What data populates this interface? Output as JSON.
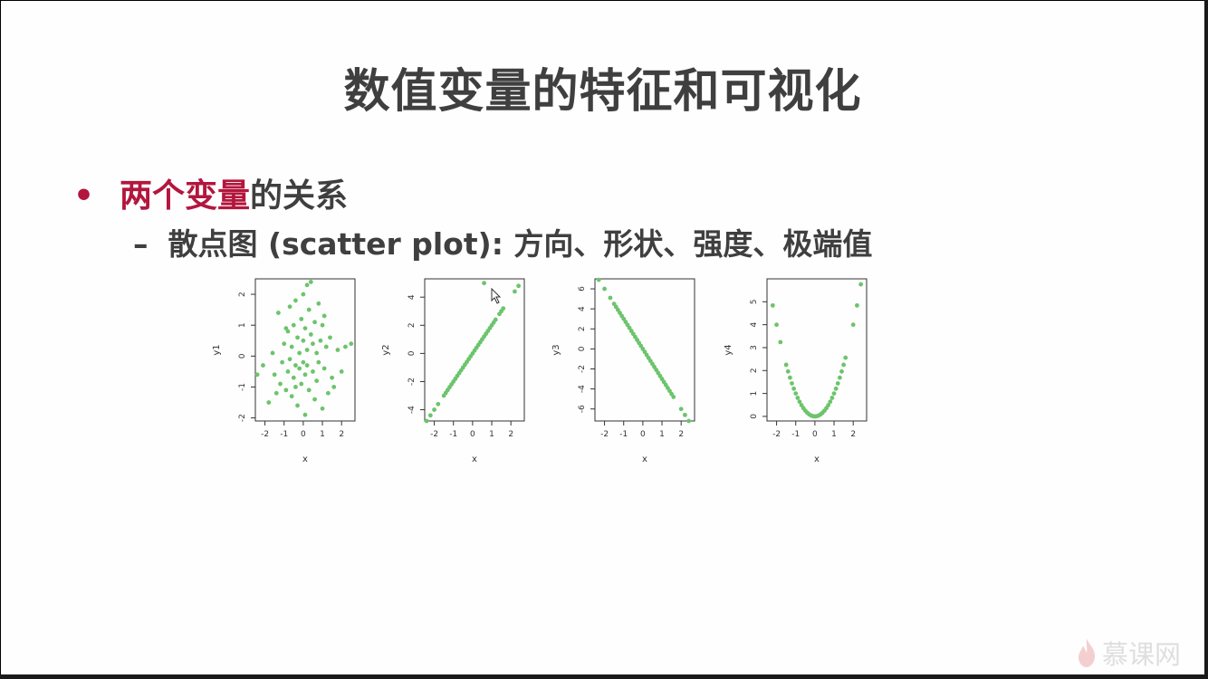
{
  "slide": {
    "title": "数值变量的特征和可视化",
    "bullet": {
      "highlight": "两个变量",
      "rest": "的关系"
    },
    "sub_bullet": {
      "dash": "–",
      "text": "散点图 (scatter plot): 方向、形状、强度、极端值"
    }
  },
  "watermark": {
    "text": "慕课网",
    "icon": "flame-icon"
  },
  "colors": {
    "title": "#3f3f3f",
    "accent": "#b3163d",
    "points": "#6cc46c"
  },
  "chart_data": [
    {
      "type": "scatter",
      "xlabel": "x",
      "ylabel": "y1",
      "xlim": [
        -2.5,
        2.7
      ],
      "ylim": [
        -2.1,
        2.5
      ],
      "xticks": [
        "-2",
        "-1",
        "0",
        "1",
        "2"
      ],
      "xtick_values": [
        -2,
        -1,
        0,
        1,
        2
      ],
      "yticks": [
        "-2",
        "-1",
        "0",
        "1",
        "2"
      ],
      "ytick_values": [
        -2,
        -1,
        0,
        1,
        2
      ],
      "points": [
        [
          -2.4,
          -0.6
        ],
        [
          -2.1,
          -0.3
        ],
        [
          -1.8,
          -1.5
        ],
        [
          -1.6,
          0.1
        ],
        [
          -1.5,
          -0.6
        ],
        [
          -1.3,
          1.4
        ],
        [
          -1.2,
          -0.9
        ],
        [
          -1.1,
          -0.2
        ],
        [
          -1.0,
          0.4
        ],
        [
          -0.9,
          -1.1
        ],
        [
          -0.9,
          0.9
        ],
        [
          -0.8,
          -0.5
        ],
        [
          -0.7,
          1.6
        ],
        [
          -0.7,
          -0.1
        ],
        [
          -0.6,
          -1.3
        ],
        [
          -0.6,
          0.3
        ],
        [
          -0.5,
          1.0
        ],
        [
          -0.5,
          -0.7
        ],
        [
          -0.4,
          -0.3
        ],
        [
          -0.4,
          1.8
        ],
        [
          -0.3,
          0.6
        ],
        [
          -0.3,
          -1.6
        ],
        [
          -0.2,
          -0.4
        ],
        [
          -0.2,
          0.1
        ],
        [
          -0.1,
          1.2
        ],
        [
          -0.1,
          -0.9
        ],
        [
          0.0,
          -0.2
        ],
        [
          0.0,
          2.0
        ],
        [
          0.0,
          0.5
        ],
        [
          0.1,
          -1.9
        ],
        [
          0.1,
          -0.6
        ],
        [
          0.2,
          2.3
        ],
        [
          0.2,
          0.2
        ],
        [
          0.2,
          -0.3
        ],
        [
          0.3,
          1.5
        ],
        [
          0.3,
          -1.1
        ],
        [
          0.4,
          0.7
        ],
        [
          0.4,
          2.4
        ],
        [
          0.5,
          -0.5
        ],
        [
          0.5,
          0.4
        ],
        [
          0.6,
          1.1
        ],
        [
          0.6,
          -1.4
        ],
        [
          0.7,
          0.1
        ],
        [
          0.7,
          -0.8
        ],
        [
          0.8,
          1.7
        ],
        [
          0.8,
          -0.2
        ],
        [
          0.9,
          0.5
        ],
        [
          1.0,
          -1.7
        ],
        [
          1.0,
          1.0
        ],
        [
          1.1,
          -0.4
        ],
        [
          1.2,
          0.3
        ],
        [
          1.3,
          -1.2
        ],
        [
          1.4,
          0.6
        ],
        [
          1.5,
          -0.7
        ],
        [
          1.6,
          -1.0
        ],
        [
          1.8,
          0.2
        ],
        [
          2.0,
          -0.5
        ],
        [
          2.2,
          0.3
        ],
        [
          2.5,
          0.4
        ],
        [
          -0.8,
          0.8
        ],
        [
          0.1,
          0.9
        ],
        [
          -0.4,
          -1.0
        ],
        [
          1.1,
          1.3
        ],
        [
          -1.4,
          -1.2
        ]
      ]
    },
    {
      "type": "scatter",
      "xlabel": "x",
      "ylabel": "y2",
      "xlim": [
        -2.5,
        2.7
      ],
      "ylim": [
        -4.8,
        5.3
      ],
      "xticks": [
        "-2",
        "-1",
        "0",
        "1",
        "2"
      ],
      "xtick_values": [
        -2,
        -1,
        0,
        1,
        2
      ],
      "yticks": [
        "-4",
        "-2",
        "0",
        "2",
        "4"
      ],
      "ytick_values": [
        -4,
        -2,
        0,
        2,
        4
      ],
      "points": [
        [
          -2.4,
          -4.8
        ],
        [
          -2.2,
          -4.4
        ],
        [
          -2.0,
          -4.0
        ],
        [
          -1.8,
          -3.6
        ],
        [
          -1.5,
          -3.0
        ],
        [
          -1.4,
          -2.8
        ],
        [
          -1.3,
          -2.6
        ],
        [
          -1.2,
          -2.4
        ],
        [
          -1.1,
          -2.2
        ],
        [
          -1.0,
          -2.0
        ],
        [
          -0.9,
          -1.8
        ],
        [
          -0.8,
          -1.6
        ],
        [
          -0.7,
          -1.4
        ],
        [
          -0.6,
          -1.2
        ],
        [
          -0.5,
          -1.0
        ],
        [
          -0.4,
          -0.8
        ],
        [
          -0.3,
          -0.6
        ],
        [
          -0.2,
          -0.4
        ],
        [
          -0.1,
          -0.2
        ],
        [
          0.0,
          0.0
        ],
        [
          0.1,
          0.2
        ],
        [
          0.2,
          0.4
        ],
        [
          0.3,
          0.6
        ],
        [
          0.4,
          0.8
        ],
        [
          0.5,
          1.0
        ],
        [
          0.6,
          1.2
        ],
        [
          0.7,
          1.4
        ],
        [
          0.8,
          1.6
        ],
        [
          0.9,
          1.8
        ],
        [
          1.0,
          2.0
        ],
        [
          1.1,
          2.2
        ],
        [
          1.2,
          2.4
        ],
        [
          1.4,
          2.8
        ],
        [
          1.5,
          3.0
        ],
        [
          1.6,
          3.2
        ],
        [
          2.2,
          4.4
        ],
        [
          2.4,
          4.8
        ],
        [
          0.6,
          5.0
        ]
      ]
    },
    {
      "type": "scatter",
      "xlabel": "x",
      "ylabel": "y3",
      "xlim": [
        -2.5,
        2.7
      ],
      "ylim": [
        -7.2,
        7.0
      ],
      "xticks": [
        "-2",
        "-1",
        "0",
        "1",
        "2"
      ],
      "xtick_values": [
        -2,
        -1,
        0,
        1,
        2
      ],
      "yticks": [
        "-6",
        "-4",
        "-2",
        "0",
        "2",
        "4",
        "6"
      ],
      "ytick_values": [
        -6,
        -4,
        -2,
        0,
        2,
        4,
        6
      ],
      "points": [
        [
          -2.3,
          6.9
        ],
        [
          -2.0,
          6.0
        ],
        [
          -1.7,
          5.1
        ],
        [
          -1.5,
          4.5
        ],
        [
          -1.4,
          4.2
        ],
        [
          -1.3,
          3.9
        ],
        [
          -1.2,
          3.6
        ],
        [
          -1.1,
          3.3
        ],
        [
          -1.0,
          3.0
        ],
        [
          -0.9,
          2.7
        ],
        [
          -0.8,
          2.4
        ],
        [
          -0.7,
          2.1
        ],
        [
          -0.6,
          1.8
        ],
        [
          -0.5,
          1.5
        ],
        [
          -0.4,
          1.2
        ],
        [
          -0.3,
          0.9
        ],
        [
          -0.2,
          0.6
        ],
        [
          -0.1,
          0.3
        ],
        [
          0.0,
          0.0
        ],
        [
          0.1,
          -0.3
        ],
        [
          0.2,
          -0.6
        ],
        [
          0.3,
          -0.9
        ],
        [
          0.4,
          -1.2
        ],
        [
          0.5,
          -1.5
        ],
        [
          0.6,
          -1.8
        ],
        [
          0.7,
          -2.1
        ],
        [
          0.8,
          -2.4
        ],
        [
          0.9,
          -2.7
        ],
        [
          1.0,
          -3.0
        ],
        [
          1.1,
          -3.3
        ],
        [
          1.2,
          -3.6
        ],
        [
          1.3,
          -3.9
        ],
        [
          1.4,
          -4.2
        ],
        [
          1.5,
          -4.5
        ],
        [
          1.6,
          -4.8
        ],
        [
          2.0,
          -6.0
        ],
        [
          2.2,
          -6.6
        ],
        [
          2.4,
          -7.2
        ]
      ]
    },
    {
      "type": "scatter",
      "xlabel": "x",
      "ylabel": "y4",
      "xlim": [
        -2.5,
        2.7
      ],
      "ylim": [
        -0.2,
        6.0
      ],
      "xticks": [
        "-2",
        "-1",
        "0",
        "1",
        "2"
      ],
      "xtick_values": [
        -2,
        -1,
        0,
        1,
        2
      ],
      "yticks": [
        "0",
        "1",
        "2",
        "3",
        "4",
        "5"
      ],
      "ytick_values": [
        0,
        1,
        2,
        3,
        4,
        5
      ],
      "points": [
        [
          -2.2,
          4.84
        ],
        [
          -2.0,
          4.0
        ],
        [
          -1.8,
          3.24
        ],
        [
          -1.5,
          2.25
        ],
        [
          -1.4,
          1.96
        ],
        [
          -1.3,
          1.69
        ],
        [
          -1.2,
          1.44
        ],
        [
          -1.1,
          1.21
        ],
        [
          -1.0,
          1.0
        ],
        [
          -0.9,
          0.81
        ],
        [
          -0.8,
          0.64
        ],
        [
          -0.7,
          0.49
        ],
        [
          -0.6,
          0.36
        ],
        [
          -0.5,
          0.25
        ],
        [
          -0.4,
          0.16
        ],
        [
          -0.3,
          0.09
        ],
        [
          -0.2,
          0.04
        ],
        [
          -0.1,
          0.01
        ],
        [
          0.0,
          0.0
        ],
        [
          0.1,
          0.01
        ],
        [
          0.2,
          0.04
        ],
        [
          0.3,
          0.09
        ],
        [
          0.4,
          0.16
        ],
        [
          0.5,
          0.25
        ],
        [
          0.6,
          0.36
        ],
        [
          0.7,
          0.49
        ],
        [
          0.8,
          0.64
        ],
        [
          0.9,
          0.81
        ],
        [
          1.0,
          1.0
        ],
        [
          1.1,
          1.21
        ],
        [
          1.2,
          1.44
        ],
        [
          1.3,
          1.69
        ],
        [
          1.4,
          1.96
        ],
        [
          1.5,
          2.25
        ],
        [
          1.6,
          2.56
        ],
        [
          2.0,
          4.0
        ],
        [
          2.2,
          4.84
        ],
        [
          2.4,
          5.76
        ]
      ]
    }
  ]
}
